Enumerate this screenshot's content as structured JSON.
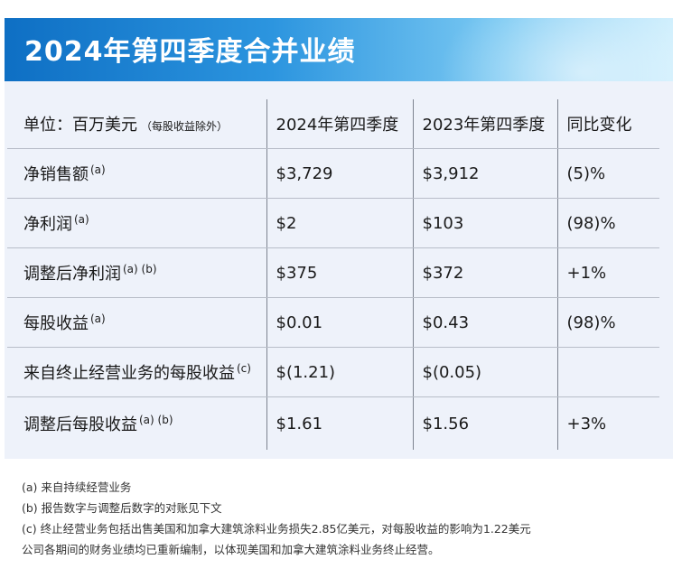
{
  "title": "2024年第四季度合并业绩",
  "header": {
    "col1": "单位：百万美元",
    "col1_note": "（每股收益除外）",
    "col2": "2024年第四季度",
    "col3": "2023年第四季度",
    "col4": "同比变化"
  },
  "rows": [
    {
      "label": "净销售额",
      "note": "(a)",
      "q4_2024": "$3,729",
      "q4_2023": "$3,912",
      "change": "(5)%"
    },
    {
      "label": "净利润",
      "note": "(a)",
      "q4_2024": "$2",
      "q4_2023": "$103",
      "change": "(98)%"
    },
    {
      "label": "调整后净利润",
      "note": "(a) (b)",
      "q4_2024": "$375",
      "q4_2023": "$372",
      "change": "+1%"
    },
    {
      "label": "每股收益",
      "note": "(a)",
      "q4_2024": "$0.01",
      "q4_2023": "$0.43",
      "change": "(98)%"
    },
    {
      "label": "来自终止经营业务的每股收益",
      "note": "(c)",
      "q4_2024": "$(1.21)",
      "q4_2023": "$(0.05)",
      "change": ""
    },
    {
      "label": "调整后每股收益",
      "note": "(a) (b)",
      "q4_2024": "$1.61",
      "q4_2023": "$1.56",
      "change": "+3%"
    }
  ],
  "footnotes": [
    "(a) 来自持续经营业务",
    "(b) 报告数字与调整后数字的对账见下文",
    "(c) 终止经营业务包括出售美国和加拿大建筑涂料业务损失2.85亿美元，对每股收益的影响为1.22美元",
    "公司各期间的财务业绩均已重新编制，以体现美国和加拿大建筑涂料业务终止经营。"
  ],
  "colors": {
    "banner_start": "#0e6fc4",
    "banner_end": "#cdeefd",
    "panel_bg": "#eef2fa"
  }
}
